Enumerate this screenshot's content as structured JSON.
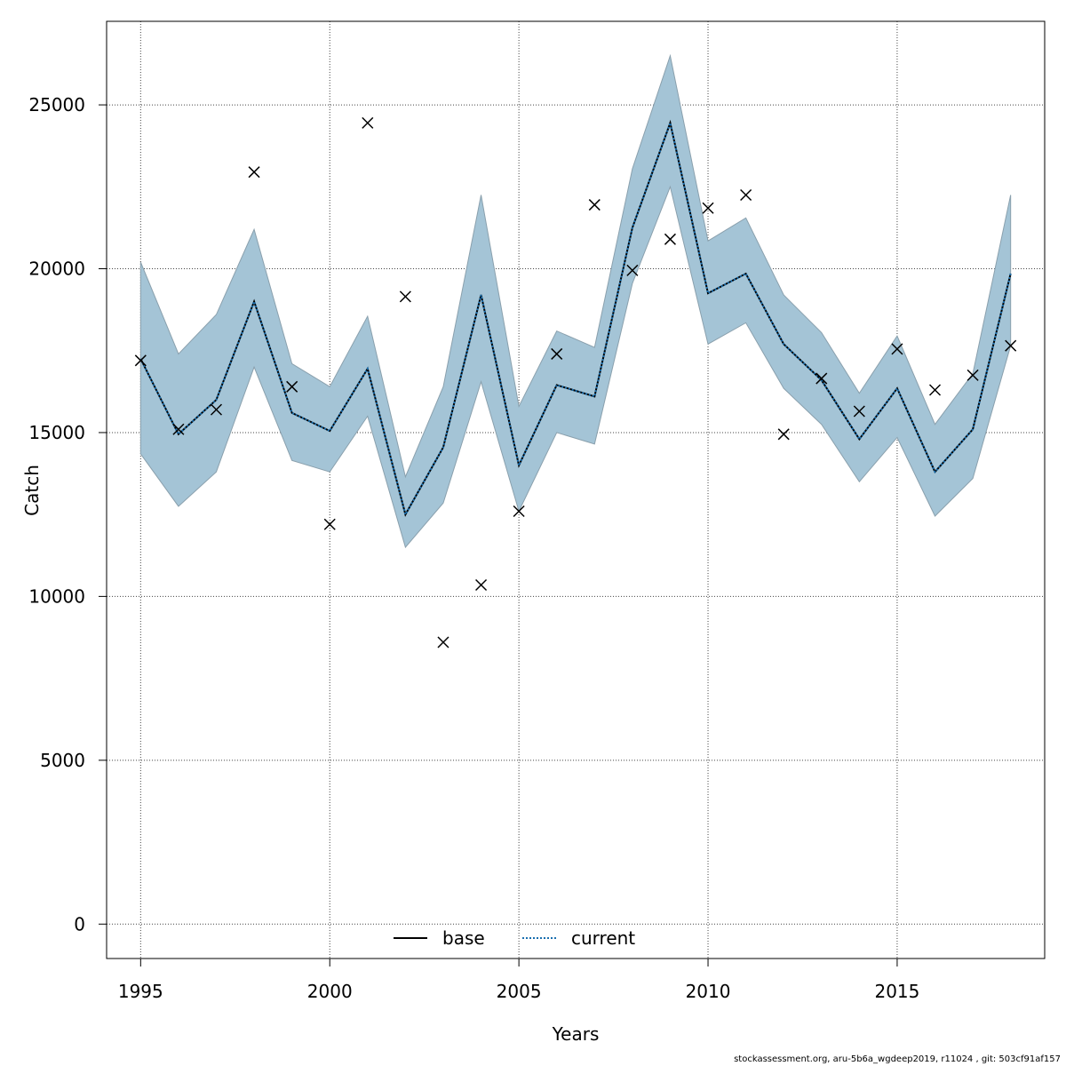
{
  "chart_data": {
    "type": "line",
    "xlabel": "Years",
    "ylabel": "Catch",
    "xlim": [
      1994.1,
      2018.9
    ],
    "ylim": [
      -1050,
      27550
    ],
    "xticks": [
      1995,
      2000,
      2005,
      2010,
      2015
    ],
    "yticks": [
      0,
      5000,
      10000,
      15000,
      20000,
      25000
    ],
    "grid": true,
    "legend_position": "bottom-center",
    "years": [
      1995,
      1996,
      1997,
      1998,
      1999,
      2000,
      2001,
      2002,
      2003,
      2004,
      2005,
      2006,
      2007,
      2008,
      2009,
      2010,
      2011,
      2012,
      2013,
      2014,
      2015,
      2016,
      2017,
      2018
    ],
    "band": {
      "lower": [
        14350,
        12750,
        13800,
        17000,
        14150,
        13800,
        15500,
        11500,
        12850,
        16550,
        12600,
        15000,
        14650,
        19550,
        22500,
        17700,
        18350,
        16350,
        15250,
        13500,
        14850,
        12450,
        13600,
        17650
      ],
      "upper": [
        20200,
        17400,
        18600,
        21200,
        17100,
        16400,
        18550,
        13650,
        16400,
        22250,
        15800,
        18100,
        17600,
        23050,
        26500,
        20850,
        21550,
        19200,
        18050,
        16200,
        17950,
        15250,
        16800,
        22250
      ],
      "color": "#a4c4d6"
    },
    "series": [
      {
        "name": "base",
        "style": "solid",
        "color": "#000000",
        "values": [
          17250,
          14950,
          16000,
          19000,
          15600,
          15050,
          16950,
          12500,
          14550,
          19200,
          14000,
          16450,
          16100,
          21250,
          24450,
          19250,
          19850,
          17700,
          16600,
          14800,
          16350,
          13800,
          15100,
          19850
        ]
      },
      {
        "name": "current",
        "style": "dotted",
        "color": "#1a6faf",
        "values": [
          17250,
          14950,
          16000,
          19000,
          15600,
          15050,
          16950,
          12500,
          14550,
          19200,
          14000,
          16450,
          16100,
          21250,
          24450,
          19250,
          19850,
          17700,
          16600,
          14800,
          16350,
          13800,
          15100,
          19850
        ]
      }
    ],
    "observed": {
      "marker": "x",
      "values": [
        17200,
        15100,
        15700,
        22950,
        16400,
        12200,
        24450,
        19150,
        8600,
        10350,
        12600,
        17400,
        21950,
        19950,
        20900,
        21850,
        22250,
        14950,
        16650,
        15650,
        17550,
        16300,
        16750,
        17650
      ]
    }
  },
  "footer": "stockassessment.org, aru-5b6a_wgdeep2019, r11024 , git: 503cf91af157"
}
